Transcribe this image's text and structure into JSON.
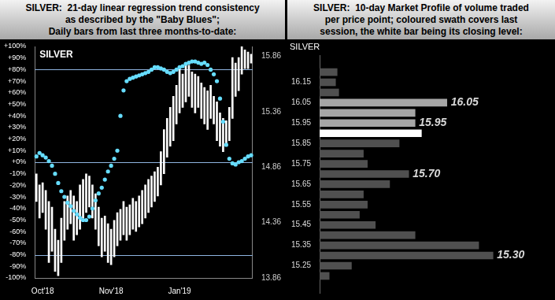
{
  "chart_data": [
    {
      "type": "bar",
      "title": "SILVER:  21-day linear regression trend consistency\nas described by the \"Baby Blues\";\nDaily bars from last three months-to-date:",
      "label": "SILVER",
      "categories": [
        null,
        null,
        "Oct'18",
        null,
        null,
        null,
        null,
        null,
        null,
        null,
        null,
        null,
        null,
        null,
        null,
        null,
        null,
        null,
        null,
        null,
        null,
        null,
        null,
        null,
        "Nov'18",
        null,
        null,
        null,
        null,
        null,
        null,
        null,
        null,
        null,
        null,
        null,
        null,
        null,
        null,
        null,
        null,
        null,
        null,
        null,
        null,
        null,
        "Jan'19",
        null,
        null,
        null,
        null,
        null,
        null,
        null,
        null,
        null,
        null,
        null,
        null,
        null,
        null,
        null,
        null,
        null,
        null,
        null,
        null,
        null,
        null,
        null
      ],
      "series": [
        {
          "name": "SILVER",
          "type": "bar",
          "axis": "y2",
          "color": "#ffffff",
          "values": [
            [
              14.55,
              14.8
            ],
            [
              14.4,
              14.7
            ],
            [
              14.45,
              14.72
            ],
            [
              14.3,
              14.65
            ],
            [
              14.0,
              14.55
            ],
            [
              14.1,
              14.5
            ],
            [
              13.92,
              14.3
            ],
            [
              13.88,
              14.2
            ],
            [
              14.0,
              14.4
            ],
            [
              14.2,
              14.55
            ],
            [
              14.3,
              14.6
            ],
            [
              14.35,
              14.65
            ],
            [
              14.2,
              14.6
            ],
            [
              14.25,
              14.55
            ],
            [
              14.3,
              14.7
            ],
            [
              14.4,
              14.75
            ],
            [
              14.45,
              14.8
            ],
            [
              14.5,
              14.78
            ],
            [
              14.4,
              14.7
            ],
            [
              14.3,
              14.62
            ],
            [
              14.15,
              14.5
            ],
            [
              14.05,
              14.4
            ],
            [
              14.1,
              14.42
            ],
            [
              14.0,
              14.35
            ],
            [
              13.98,
              14.3
            ],
            [
              14.05,
              14.38
            ],
            [
              14.15,
              14.45
            ],
            [
              14.2,
              14.48
            ],
            [
              14.25,
              14.55
            ],
            [
              14.2,
              14.5
            ],
            [
              14.25,
              14.52
            ],
            [
              14.3,
              14.58
            ],
            [
              14.28,
              14.55
            ],
            [
              14.32,
              14.6
            ],
            [
              14.35,
              14.65
            ],
            [
              14.4,
              14.7
            ],
            [
              14.45,
              14.75
            ],
            [
              14.5,
              14.78
            ],
            [
              14.55,
              14.82
            ],
            [
              14.6,
              14.86
            ],
            [
              14.7,
              15.0
            ],
            [
              14.8,
              15.2
            ],
            [
              14.95,
              15.3
            ],
            [
              15.05,
              15.4
            ],
            [
              15.1,
              15.5
            ],
            [
              15.25,
              15.6
            ],
            [
              15.35,
              15.75
            ],
            [
              15.4,
              15.7
            ],
            [
              15.45,
              15.8
            ],
            [
              15.5,
              15.78
            ],
            [
              15.4,
              15.72
            ],
            [
              15.35,
              15.7
            ],
            [
              15.4,
              15.68
            ],
            [
              15.3,
              15.62
            ],
            [
              15.25,
              15.58
            ],
            [
              15.2,
              15.55
            ],
            [
              15.3,
              15.6
            ],
            [
              15.25,
              15.5
            ],
            [
              15.1,
              15.45
            ],
            [
              15.05,
              15.35
            ],
            [
              15.0,
              15.3
            ],
            [
              15.05,
              15.28
            ],
            [
              15.1,
              15.4
            ],
            [
              15.3,
              15.85
            ],
            [
              15.5,
              15.8
            ],
            [
              15.55,
              15.85
            ],
            [
              15.7,
              15.95
            ],
            [
              15.75,
              15.92
            ],
            [
              15.75,
              15.9
            ],
            [
              15.8,
              15.88
            ]
          ]
        },
        {
          "name": "Baby Blues",
          "type": "line",
          "axis": "y",
          "color": "#66ddff",
          "marker": "circle",
          "line_style": "none",
          "values": [
            5,
            8,
            6,
            4,
            1,
            -3,
            -10,
            -18,
            -25,
            -30,
            -35,
            -38,
            -42,
            -45,
            -48,
            -50,
            -50,
            -47,
            -40,
            -33,
            -27,
            -22,
            -15,
            -8,
            -3,
            3,
            10,
            40,
            62,
            70,
            72,
            73,
            74,
            75,
            76,
            77,
            78,
            80,
            82,
            82,
            81,
            80,
            78,
            77,
            78,
            80,
            82,
            83,
            85,
            86,
            87,
            87,
            86,
            85,
            86,
            84,
            80,
            76,
            70,
            55,
            35,
            15,
            3,
            -1,
            -2,
            0,
            1,
            3,
            5,
            6
          ]
        }
      ],
      "ylim": [
        -100,
        100
      ],
      "yticks": [
        {
          "value": 100,
          "label": "+100%"
        },
        {
          "value": 90,
          "label": "+90%"
        },
        {
          "value": 80,
          "label": "+80%"
        },
        {
          "value": 70,
          "label": "+70%"
        },
        {
          "value": 60,
          "label": "+60%"
        },
        {
          "value": 50,
          "label": "+50%"
        },
        {
          "value": 40,
          "label": "+40%"
        },
        {
          "value": 30,
          "label": "+30%"
        },
        {
          "value": 20,
          "label": "+20%"
        },
        {
          "value": 10,
          "label": "+10%"
        },
        {
          "value": 0,
          "label": "+0%"
        },
        {
          "value": -10,
          "label": "-10%"
        },
        {
          "value": -20,
          "label": "-20%"
        },
        {
          "value": -30,
          "label": "-30%"
        },
        {
          "value": -40,
          "label": "-40%"
        },
        {
          "value": -50,
          "label": "-50%"
        },
        {
          "value": -60,
          "label": "-60%"
        },
        {
          "value": -70,
          "label": "-70%"
        },
        {
          "value": -80,
          "label": "-80%"
        },
        {
          "value": -90,
          "label": "-90%"
        },
        {
          "value": -100,
          "label": "-100%"
        }
      ],
      "y2lim": [
        13.86,
        15.95
      ],
      "y2ticks": [
        13.86,
        14.36,
        14.86,
        15.36,
        15.86
      ],
      "reference_lines": {
        "values": [
          80,
          0,
          -80
        ],
        "color": "#8fb4e0"
      },
      "grid": false
    },
    {
      "type": "bar",
      "orientation": "horizontal",
      "title": "SILVER:  10-day Market Profile of volume traded\nper price point; coloured swath covers last\nsession, the white bar being its closing level:",
      "label": "SILVER",
      "y": [
        16.2,
        16.15,
        16.1,
        16.05,
        16.0,
        15.95,
        15.9,
        15.85,
        15.8,
        15.75,
        15.7,
        15.65,
        15.6,
        15.55,
        15.5,
        15.45,
        15.4,
        15.35,
        15.3,
        15.25,
        15.2
      ],
      "values": [
        22,
        20,
        24,
        160,
        120,
        120,
        128,
        100,
        55,
        60,
        112,
        88,
        55,
        60,
        50,
        70,
        120,
        200,
        218,
        40,
        12
      ],
      "colors": [
        "#505050",
        "#505050",
        "#505050",
        "#a6a6a6",
        "#a6a6a6",
        "#a6a6a6",
        "#ffffff",
        "#505050",
        "#505050",
        "#505050",
        "#505050",
        "#505050",
        "#505050",
        "#505050",
        "#505050",
        "#505050",
        "#505050",
        "#505050",
        "#505050",
        "#505050",
        "#505050"
      ],
      "ylim": [
        15.175,
        16.225
      ],
      "yticks": [
        15.25,
        15.35,
        15.45,
        15.55,
        15.65,
        15.75,
        15.85,
        15.95,
        16.05,
        16.15
      ],
      "xlim": [
        0,
        290
      ],
      "tick_labels": "y",
      "annotations": [
        {
          "y": 16.05,
          "text": "16.05"
        },
        {
          "y": 15.95,
          "text": "15.95"
        },
        {
          "y": 15.7,
          "text": "15.70"
        },
        {
          "y": 15.3,
          "text": "15.30"
        }
      ],
      "grid": false
    }
  ]
}
